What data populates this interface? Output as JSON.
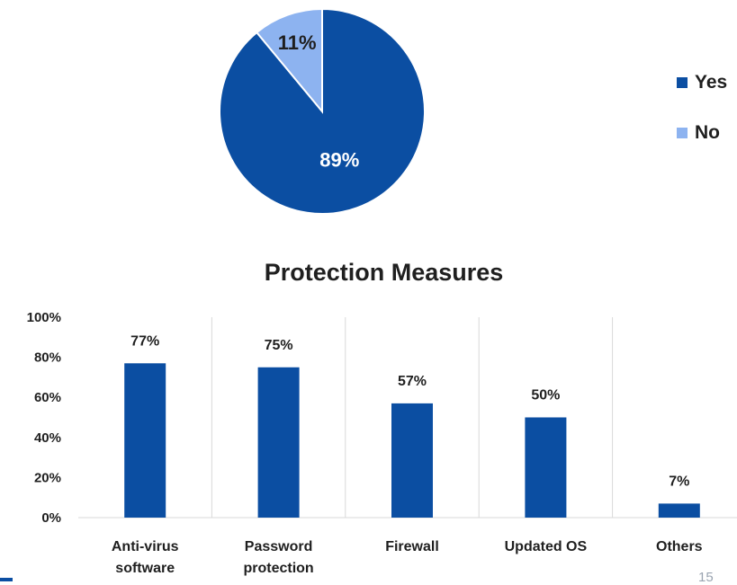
{
  "colors": {
    "primary": "#0b4ea2",
    "secondary": "#8db3f0",
    "grid": "#d9d9d9",
    "text": "#1f1f1f"
  },
  "page": {
    "slide_number": "15"
  },
  "chart_data": [
    {
      "type": "pie",
      "slices": [
        {
          "label": "Yes",
          "value": 89,
          "display": "89%"
        },
        {
          "label": "No",
          "value": 11,
          "display": "11%"
        }
      ],
      "legend": [
        "Yes",
        "No"
      ],
      "legend_position": "right"
    },
    {
      "type": "bar",
      "title": "Protection Measures",
      "categories": [
        [
          "Anti-virus",
          "software"
        ],
        [
          "Password",
          "protection"
        ],
        [
          "Firewall"
        ],
        [
          "Updated OS"
        ],
        [
          "Others"
        ]
      ],
      "values": [
        77,
        75,
        57,
        50,
        7
      ],
      "value_labels": [
        "77%",
        "75%",
        "57%",
        "50%",
        "7%"
      ],
      "ylim": [
        0,
        100
      ],
      "yticks": [
        "0%",
        "20%",
        "40%",
        "60%",
        "80%",
        "100%"
      ],
      "grid": "vertical category separators"
    }
  ]
}
